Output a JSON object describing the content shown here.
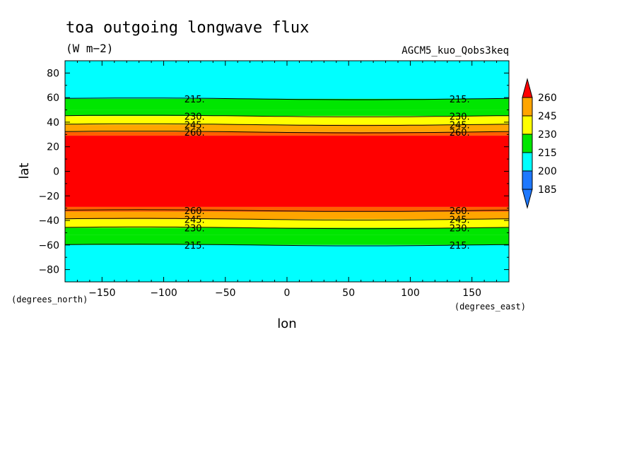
{
  "chart_data": {
    "type": "contour",
    "title": "toa outgoing longwave flux",
    "units": "(W m−2)",
    "model": "AGCM5_kuo_Qobs3keq",
    "xlabel": "lon",
    "ylabel": "lat",
    "x_units": "(degrees_east)",
    "y_units": "(degrees_north)",
    "xlim": [
      -180,
      180
    ],
    "ylim": [
      -90,
      90
    ],
    "x_ticks": [
      -150,
      -100,
      -50,
      0,
      50,
      100,
      150
    ],
    "x_tick_labels": [
      "−150",
      "−100",
      "−50",
      "0",
      "50",
      "100",
      "150"
    ],
    "y_ticks": [
      80,
      60,
      40,
      20,
      0,
      -20,
      -40,
      -60,
      -80
    ],
    "y_tick_labels": [
      "80",
      "60",
      "40",
      "20",
      "0",
      "−20",
      "−40",
      "−60",
      "−80"
    ],
    "levels": [
      185,
      200,
      215,
      230,
      245,
      260
    ],
    "colors": [
      "#1E78FF",
      "#00FFFF",
      "#00E600",
      "#FFFF00",
      "#FFA500",
      "#FF0000"
    ],
    "colorbar_labels": [
      "260",
      "245",
      "230",
      "215",
      "200",
      "185"
    ],
    "bands": [
      {
        "from_lat": 90,
        "to_lat": 59,
        "color": "#00FFFF"
      },
      {
        "from_lat": 59,
        "to_lat": 50,
        "color": "#00E600"
      },
      {
        "from_lat": 50,
        "to_lat": 45,
        "color": "#00E600"
      },
      {
        "from_lat": 45,
        "to_lat": 38,
        "color": "#FFFF00"
      },
      {
        "from_lat": 38,
        "to_lat": 32,
        "color": "#FFA500"
      },
      {
        "from_lat": 32,
        "to_lat": 29,
        "color": "#FF6000"
      },
      {
        "from_lat": 29,
        "to_lat": -29,
        "color": "#FF0000"
      },
      {
        "from_lat": -29,
        "to_lat": -33,
        "color": "#FF6000"
      },
      {
        "from_lat": -33,
        "to_lat": -39,
        "color": "#FFA500"
      },
      {
        "from_lat": -39,
        "to_lat": -46,
        "color": "#FFFF00"
      },
      {
        "from_lat": -46,
        "to_lat": -52,
        "color": "#00E600"
      },
      {
        "from_lat": -52,
        "to_lat": -60,
        "color": "#00E600"
      },
      {
        "from_lat": -60,
        "to_lat": -90,
        "color": "#00FFFF"
      }
    ],
    "contours": [
      {
        "level": "215.",
        "lat": 59
      },
      {
        "level": "230.",
        "lat": 45
      },
      {
        "level": "245.",
        "lat": 38
      },
      {
        "level": "260.",
        "lat": 32
      },
      {
        "level": "260.",
        "lat": -32
      },
      {
        "level": "245.",
        "lat": -39
      },
      {
        "level": "230.",
        "lat": -46
      },
      {
        "level": "215.",
        "lat": -60
      }
    ],
    "contour_label_lons": [
      -75,
      140
    ]
  }
}
